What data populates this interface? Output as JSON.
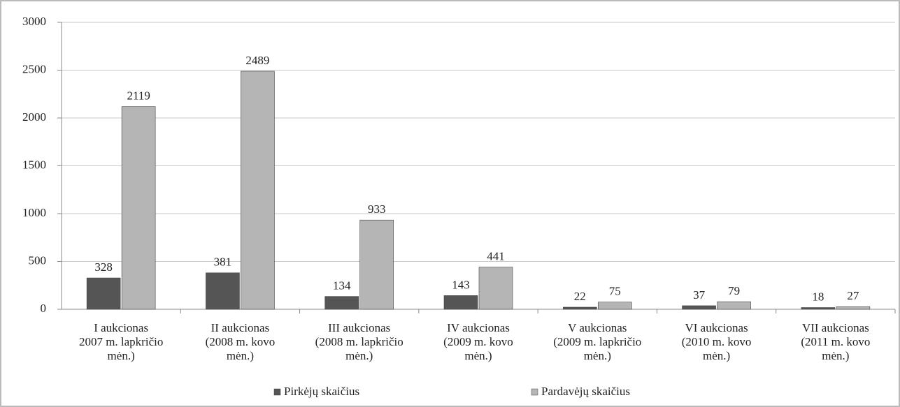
{
  "chart_data": {
    "type": "bar",
    "categories": [
      [
        "I aukcionas",
        "2007 m. lapkričio",
        "mėn.)"
      ],
      [
        "II aukcionas",
        "(2008 m. kovo",
        "mėn.)"
      ],
      [
        "III aukcionas",
        "(2008 m. lapkričio",
        "mėn.)"
      ],
      [
        "IV aukcionas",
        "(2009 m. kovo",
        "mėn.)"
      ],
      [
        "V aukcionas",
        "(2009 m. lapkričio",
        "mėn.)"
      ],
      [
        "VI aukcionas",
        "(2010 m. kovo",
        "mėn.)"
      ],
      [
        "VII aukcionas",
        "(2011 m. kovo",
        "mėn.)"
      ]
    ],
    "series": [
      {
        "name": "Pirkėjų skaičius",
        "color": "#555555",
        "values": [
          328,
          381,
          134,
          143,
          22,
          37,
          18
        ]
      },
      {
        "name": "Pardavėjų skaičius",
        "color": "#b5b5b5",
        "values": [
          2119,
          2489,
          933,
          441,
          75,
          79,
          27
        ]
      }
    ],
    "ylim": [
      0,
      3000
    ],
    "yticks": [
      0,
      500,
      1000,
      1500,
      2000,
      2500,
      3000
    ],
    "grid": true
  }
}
